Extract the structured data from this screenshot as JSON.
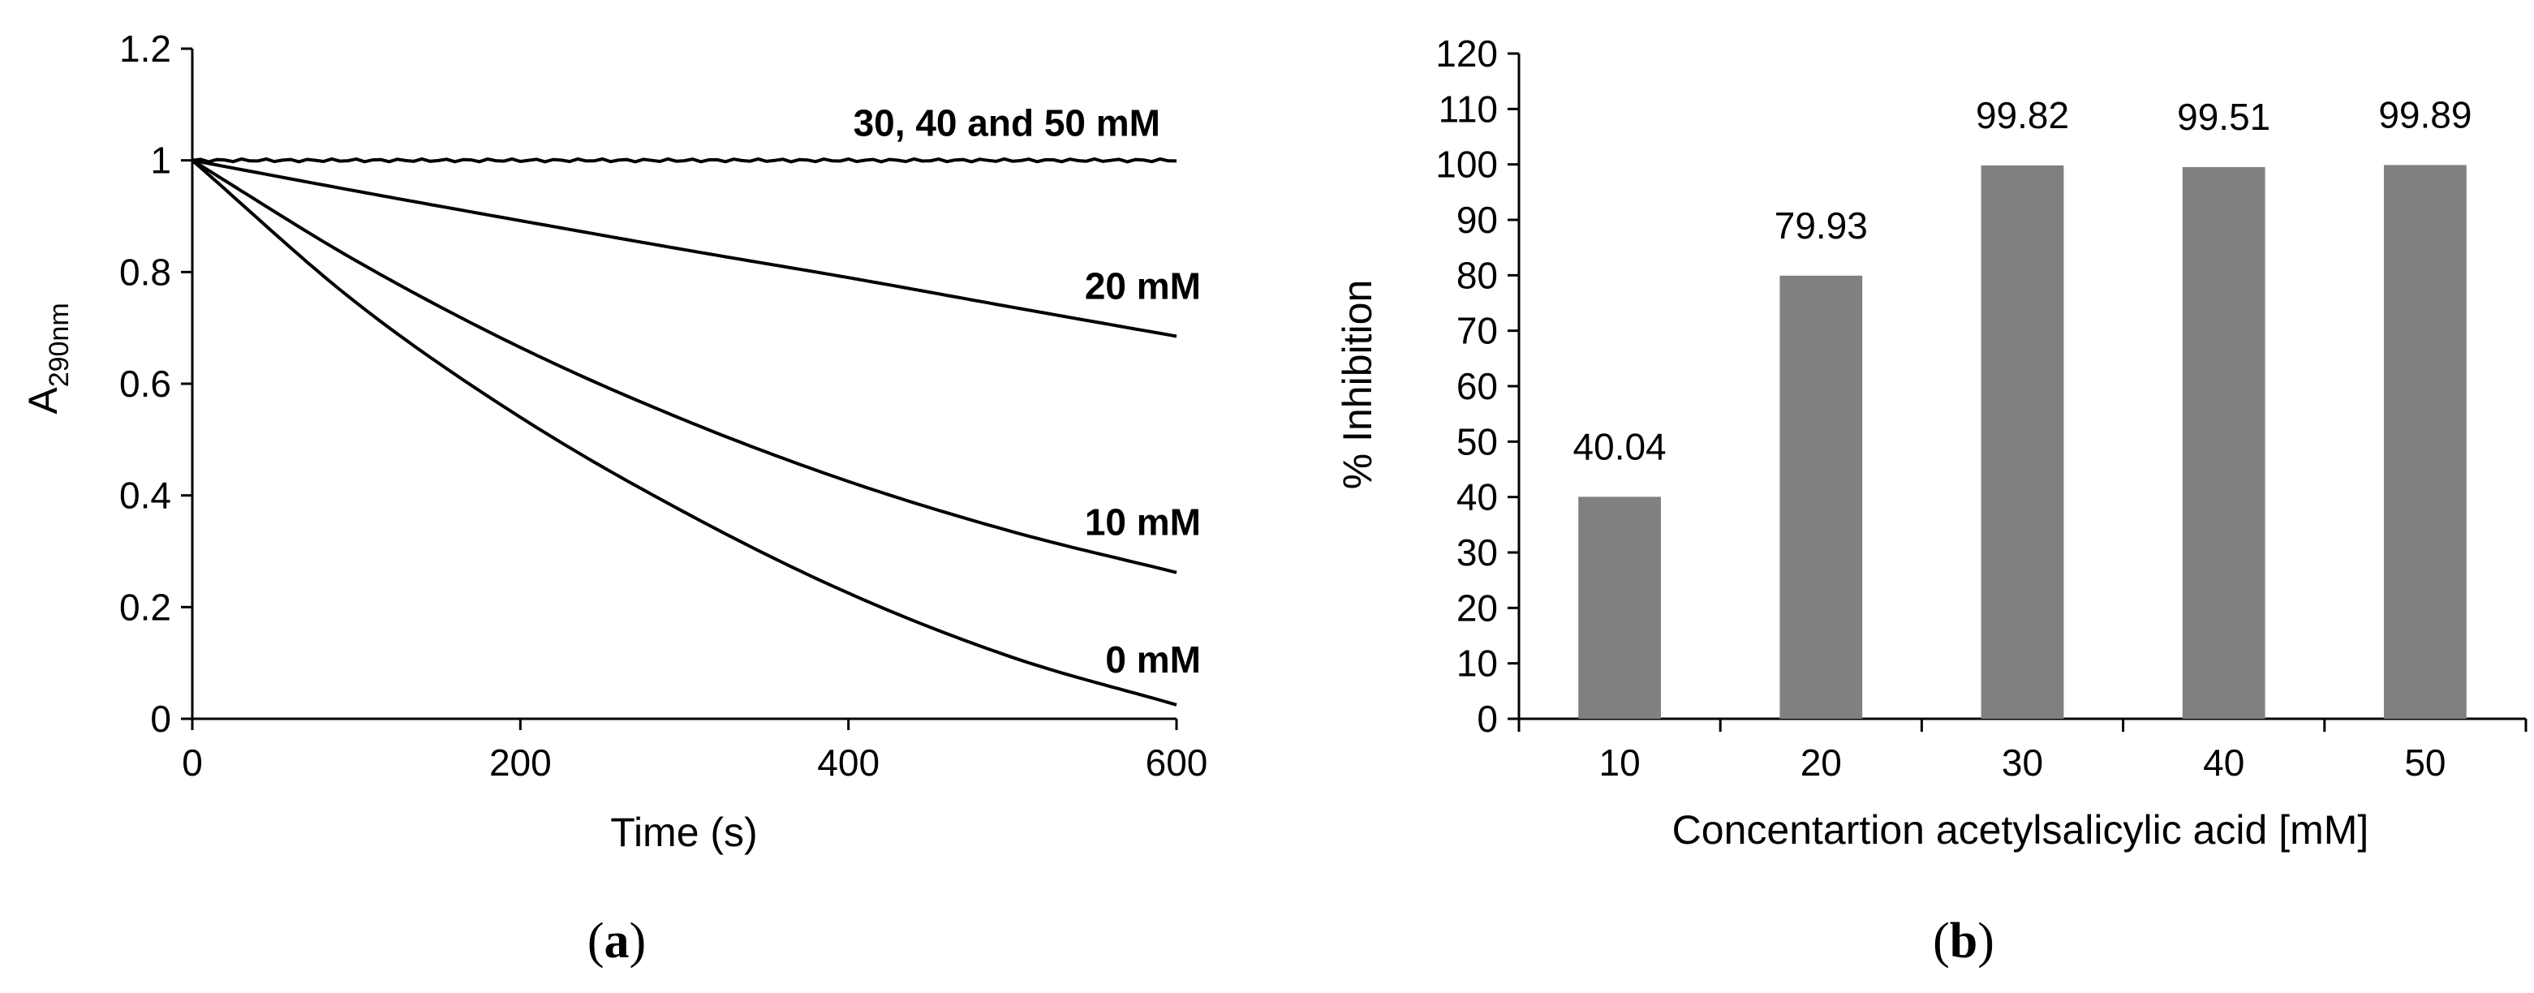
{
  "chart_data": [
    {
      "type": "line",
      "panel_label": {
        "open": "(",
        "letter": "a",
        "close": ")"
      },
      "xlabel": "Time (s)",
      "ylabel": {
        "main": "A",
        "subscript": "290nm"
      },
      "xlim": [
        0,
        600
      ],
      "ylim": [
        0,
        1.2
      ],
      "xticks": [
        "0",
        "200",
        "400",
        "600"
      ],
      "yticks": [
        "0",
        "0.2",
        "0.4",
        "0.6",
        "0.8",
        "1",
        "1.2"
      ],
      "grid": false,
      "color": "#000000",
      "series": [
        {
          "name": "30, 40 and 50 mM",
          "x": [
            0,
            100,
            200,
            300,
            400,
            500,
            600
          ],
          "y": [
            1.0,
            1.0,
            1.0,
            1.0,
            1.0,
            1.0,
            1.0
          ]
        },
        {
          "name": "20 mM",
          "x": [
            0,
            100,
            200,
            300,
            400,
            500,
            600
          ],
          "y": [
            1.0,
            0.945,
            0.892,
            0.84,
            0.79,
            0.737,
            0.685
          ]
        },
        {
          "name": "10 mM",
          "x": [
            0,
            100,
            200,
            300,
            400,
            500,
            600
          ],
          "y": [
            1.0,
            0.82,
            0.665,
            0.535,
            0.425,
            0.335,
            0.262
          ]
        },
        {
          "name": "0 mM",
          "x": [
            0,
            100,
            200,
            300,
            400,
            500,
            600
          ],
          "y": [
            1.0,
            0.745,
            0.54,
            0.37,
            0.225,
            0.11,
            0.025
          ]
        }
      ]
    },
    {
      "type": "bar",
      "panel_label": {
        "open": "(",
        "letter": "b",
        "close": ")"
      },
      "xlabel": "Concentartion acetylsalicylic acid [mM]",
      "ylabel": "% Inhibition",
      "categories": [
        "10",
        "20",
        "30",
        "40",
        "50"
      ],
      "values": [
        40.04,
        79.93,
        99.82,
        99.51,
        99.89
      ],
      "data_labels": [
        "40.04",
        "79.93",
        "99.82",
        "99.51",
        "99.89"
      ],
      "ylim": [
        0,
        120
      ],
      "yticks": [
        "0",
        "10",
        "20",
        "30",
        "40",
        "50",
        "60",
        "70",
        "80",
        "90",
        "100",
        "110",
        "120"
      ],
      "grid": false,
      "bar_color": "#808080"
    }
  ]
}
